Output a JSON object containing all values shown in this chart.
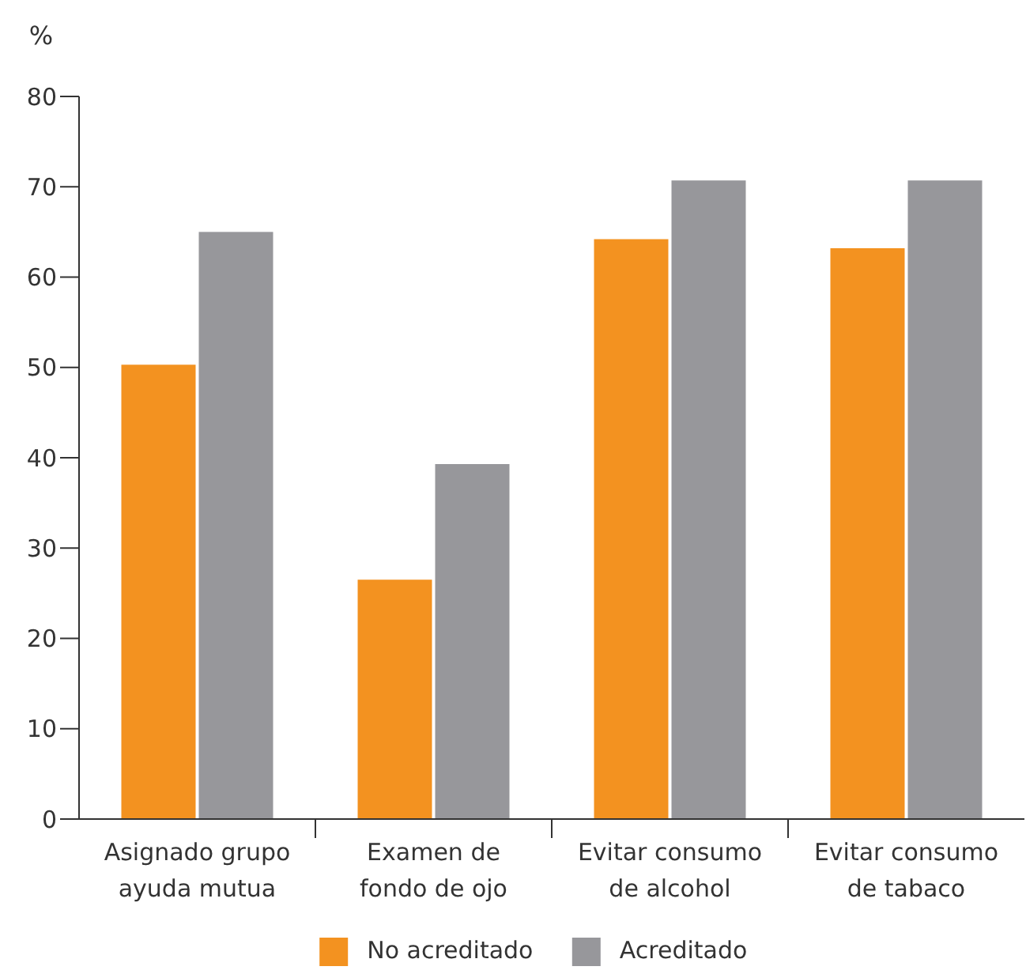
{
  "chart_data": {
    "type": "bar",
    "ylabel": "%",
    "categories": [
      "Asignado grupo\nayuda mutua",
      "Examen de\nfondo de ojo",
      "Evitar consumo\nde alcohol",
      "Evitar consumo\nde tabaco"
    ],
    "series": [
      {
        "name": "No acreditado",
        "color": "#f39220",
        "values": [
          50.3,
          26.5,
          64.2,
          63.2
        ]
      },
      {
        "name": "Acreditado",
        "color": "#97979b",
        "values": [
          65,
          39.3,
          70.7,
          70.7
        ]
      }
    ],
    "ylim": [
      0,
      80
    ],
    "yticks": [
      0,
      10,
      20,
      30,
      40,
      50,
      60,
      70,
      80
    ],
    "grid": false,
    "legend": "bottom"
  }
}
